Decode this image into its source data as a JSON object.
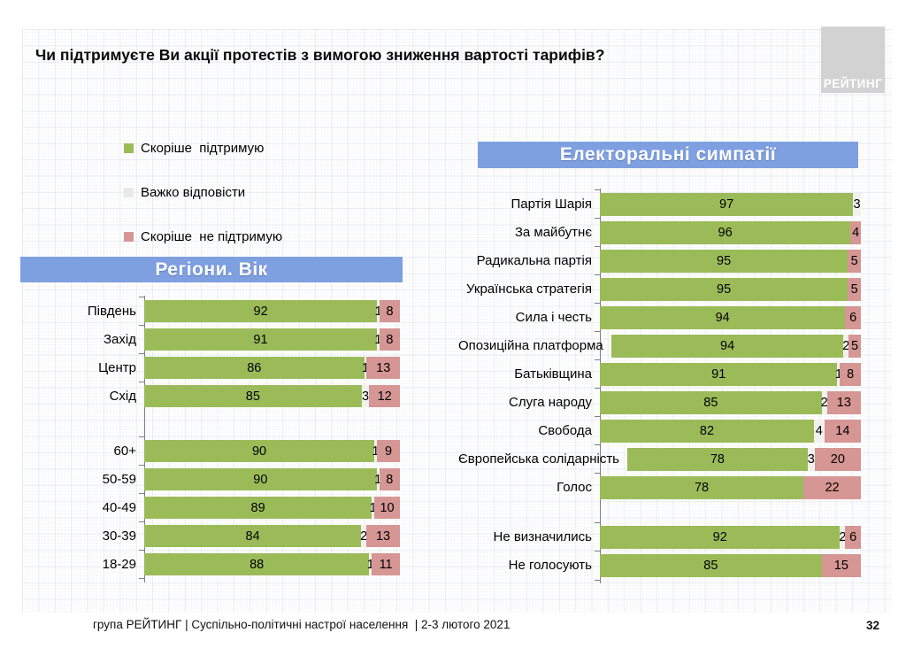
{
  "title": "Чи підтримуєте Ви акції протестів з вимогою зниження вартості тарифів?",
  "logo": "РЕЙТИНГ",
  "colors": {
    "band": "#7E9FE0",
    "support": "#9BBB59",
    "neutral": "#F1F1EE",
    "oppose": "#D59694",
    "axis": "#7F7F7F",
    "logo_bg": "#D2D2D2"
  },
  "legend": [
    {
      "label": "Скоріше  підтримую",
      "color": "#9BBB59"
    },
    {
      "label": "Важко відповісти",
      "color": "#E9E9E7"
    },
    {
      "label": "Скоріше  не підтримую",
      "color": "#D59694"
    }
  ],
  "footer": {
    "text": "група РЕЙТИНГ | Суспільно-політичні настрої населення  | 2-3 лютого 2021",
    "page": "32"
  },
  "chart_data": [
    {
      "type": "bar",
      "orientation": "horizontal",
      "stacked": true,
      "title": "Регіони. Вік",
      "xlim": [
        0,
        100
      ],
      "grid": false,
      "series_names": [
        "Скоріше підтримую",
        "Важко відповісти",
        "Скоріше не підтримую"
      ],
      "groups": [
        {
          "name": "regions",
          "rows": [
            {
              "label": "Південь",
              "values": [
                92,
                1,
                8
              ]
            },
            {
              "label": "Захід",
              "values": [
                91,
                1,
                8
              ]
            },
            {
              "label": "Центр",
              "values": [
                86,
                1,
                13
              ]
            },
            {
              "label": "Схід",
              "values": [
                85,
                3,
                12
              ]
            }
          ]
        },
        {
          "name": "age",
          "rows": [
            {
              "label": "60+",
              "values": [
                90,
                1,
                9
              ]
            },
            {
              "label": "50-59",
              "values": [
                90,
                1,
                8
              ]
            },
            {
              "label": "40-49",
              "values": [
                89,
                1,
                10
              ]
            },
            {
              "label": "30-39",
              "values": [
                84,
                2,
                13
              ]
            },
            {
              "label": "18-29",
              "values": [
                88,
                1,
                11
              ]
            }
          ]
        }
      ]
    },
    {
      "type": "bar",
      "orientation": "horizontal",
      "stacked": true,
      "title": "Електоральні симпатії",
      "xlim": [
        0,
        100
      ],
      "grid": false,
      "series_names": [
        "Скоріше підтримую",
        "Важко відповісти",
        "Скоріше не підтримую"
      ],
      "groups": [
        {
          "name": "parties",
          "rows": [
            {
              "label": "Партія Шарія",
              "values": [
                97,
                3,
                0
              ]
            },
            {
              "label": "За майбутнє",
              "values": [
                96,
                0,
                4
              ]
            },
            {
              "label": "Радикальна партія",
              "values": [
                95,
                0,
                5
              ]
            },
            {
              "label": "Українська стратегія",
              "values": [
                95,
                0,
                5
              ]
            },
            {
              "label": "Сила і честь",
              "values": [
                94,
                0,
                6
              ]
            },
            {
              "label": "Опозиційна платформа",
              "values": [
                94,
                2,
                5
              ]
            },
            {
              "label": "Батьківщина",
              "values": [
                91,
                1,
                8
              ]
            },
            {
              "label": "Слуга народу",
              "values": [
                85,
                2,
                13
              ]
            },
            {
              "label": "Свобода",
              "values": [
                82,
                4,
                14
              ]
            },
            {
              "label": "Європейська солідарність",
              "values": [
                78,
                3,
                20
              ]
            },
            {
              "label": "Голос",
              "values": [
                78,
                0,
                22
              ]
            }
          ]
        },
        {
          "name": "non-voters",
          "rows": [
            {
              "label": "Не визначились",
              "values": [
                92,
                2,
                6
              ]
            },
            {
              "label": "Не голосують",
              "values": [
                85,
                0,
                15
              ]
            }
          ]
        }
      ]
    }
  ]
}
